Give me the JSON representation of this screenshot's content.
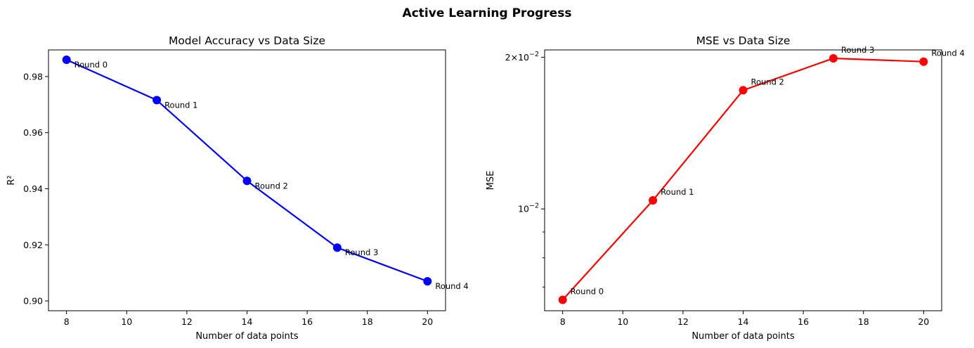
{
  "figure": {
    "suptitle": "Active Learning Progress"
  },
  "chart_data": [
    {
      "type": "line",
      "title": "Model Accuracy vs Data Size",
      "xlabel": "Number of data points",
      "ylabel": "R²",
      "x": [
        8,
        11,
        14,
        17,
        20
      ],
      "xlim": [
        7.4,
        20.6
      ],
      "ylim": [
        0.8965,
        0.9895
      ],
      "yscale": "linear",
      "xticks": [
        8,
        10,
        12,
        14,
        16,
        18,
        20
      ],
      "xtick_labels": [
        "8",
        "10",
        "12",
        "14",
        "16",
        "18",
        "20"
      ],
      "yticks": [
        0.9,
        0.92,
        0.94,
        0.96,
        0.98
      ],
      "ytick_labels": [
        "0.90",
        "0.92",
        "0.94",
        "0.96",
        "0.98"
      ],
      "series": [
        {
          "values": [
            0.986,
            0.9716,
            0.9428,
            0.919,
            0.907
          ],
          "color": "#0000ff",
          "marker": "circle",
          "annotations": [
            "Round 0",
            "Round 1",
            "Round 2",
            "Round 3",
            "Round 4"
          ],
          "annotation_placement": "below-right"
        }
      ],
      "grid": false,
      "legend": "none"
    },
    {
      "type": "line",
      "title": "MSE vs Data Size",
      "xlabel": "Number of data points",
      "ylabel": "MSE",
      "x": [
        8,
        11,
        14,
        17,
        20
      ],
      "xlim": [
        7.4,
        20.6
      ],
      "ylim": [
        0.00628,
        0.02068
      ],
      "yscale": "log",
      "xticks": [
        8,
        10,
        12,
        14,
        16,
        18,
        20
      ],
      "xtick_labels": [
        "8",
        "10",
        "12",
        "14",
        "16",
        "18",
        "20"
      ],
      "yticks": [
        0.01,
        0.02
      ],
      "ytick_labels": [
        {
          "base": "10",
          "exp": "−2"
        },
        {
          "mult": "2×",
          "base": "10",
          "exp": "−2"
        }
      ],
      "minor_yticks": [
        0.007,
        0.008,
        0.009
      ],
      "series": [
        {
          "values": [
            0.0066,
            0.0104,
            0.0172,
            0.0199,
            0.0196
          ],
          "color": "#ff0000",
          "marker": "circle",
          "annotations": [
            "Round 0",
            "Round 1",
            "Round 2",
            "Round 3",
            "Round 4"
          ],
          "annotation_placement": "above-right"
        }
      ],
      "grid": false,
      "legend": "none"
    }
  ]
}
